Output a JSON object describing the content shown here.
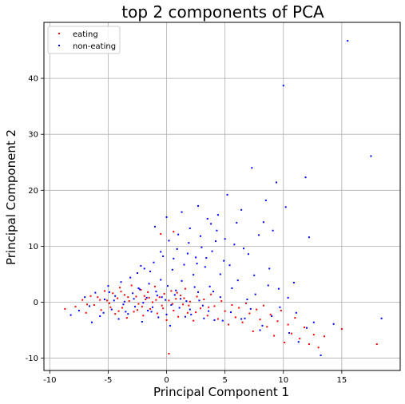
{
  "chart_data": {
    "type": "scatter",
    "title": "top 2 components of PCA",
    "xlabel": "Principal Component 1",
    "ylabel": "Principal Component 2",
    "xlim": [
      -10.5,
      20
    ],
    "ylim": [
      -12.2,
      50
    ],
    "xticks": [
      -10,
      -5,
      0,
      5,
      10,
      15
    ],
    "yticks": [
      -10,
      0,
      10,
      20,
      30,
      40
    ],
    "grid": true,
    "legend_position": "top-left",
    "series": [
      {
        "name": "eating",
        "color": "#ff0000",
        "points": [
          [
            -8.7,
            -1.2
          ],
          [
            -7.8,
            -0.8
          ],
          [
            -7.2,
            0.4
          ],
          [
            -6.9,
            -1.9
          ],
          [
            -6.5,
            1.1
          ],
          [
            -6.2,
            -0.5
          ],
          [
            -5.9,
            0.9
          ],
          [
            -5.6,
            -1.4
          ],
          [
            -5.3,
            2.0
          ],
          [
            -5.1,
            0.3
          ],
          [
            -4.8,
            -0.9
          ],
          [
            -4.6,
            1.6
          ],
          [
            -4.4,
            -2.1
          ],
          [
            -4.2,
            0.7
          ],
          [
            -4.0,
            2.6
          ],
          [
            -3.8,
            -1.0
          ],
          [
            -3.6,
            1.3
          ],
          [
            -3.4,
            -2.8
          ],
          [
            -3.2,
            0.2
          ],
          [
            -3.0,
            3.0
          ],
          [
            -2.8,
            -1.7
          ],
          [
            -2.6,
            1.0
          ],
          [
            -2.4,
            -0.3
          ],
          [
            -2.2,
            2.2
          ],
          [
            -2.0,
            -2.4
          ],
          [
            -1.8,
            0.5
          ],
          [
            -1.6,
            1.8
          ],
          [
            -1.4,
            -1.2
          ],
          [
            -1.2,
            0.0
          ],
          [
            -1.0,
            2.8
          ],
          [
            -0.8,
            -2.0
          ],
          [
            -0.6,
            0.9
          ],
          [
            -0.4,
            -0.6
          ],
          [
            -0.2,
            1.5
          ],
          [
            0.0,
            -3.2
          ],
          [
            0.2,
            0.3
          ],
          [
            0.4,
            2.0
          ],
          [
            0.6,
            -1.5
          ],
          [
            0.8,
            0.6
          ],
          [
            1.0,
            -2.6
          ],
          [
            1.2,
            1.2
          ],
          [
            1.4,
            -0.4
          ],
          [
            1.6,
            2.4
          ],
          [
            1.8,
            -1.9
          ],
          [
            2.0,
            0.1
          ],
          [
            2.3,
            -3.3
          ],
          [
            2.6,
            1.0
          ],
          [
            2.9,
            -1.1
          ],
          [
            3.2,
            0.5
          ],
          [
            3.5,
            -2.4
          ],
          [
            3.8,
            1.4
          ],
          [
            4.1,
            -0.7
          ],
          [
            4.4,
            -3.0
          ],
          [
            4.7,
            0.2
          ],
          [
            5.0,
            -1.6
          ],
          [
            5.3,
            -4.0
          ],
          [
            5.6,
            -0.5
          ],
          [
            5.9,
            -2.7
          ],
          [
            6.2,
            -1.0
          ],
          [
            6.5,
            -3.6
          ],
          [
            6.8,
            -0.2
          ],
          [
            7.1,
            -2.0
          ],
          [
            7.4,
            -5.2
          ],
          [
            7.7,
            -1.3
          ],
          [
            8.0,
            -3.1
          ],
          [
            8.3,
            -0.6
          ],
          [
            8.6,
            -4.4
          ],
          [
            8.9,
            -2.2
          ],
          [
            9.2,
            -6.0
          ],
          [
            9.5,
            -3.4
          ],
          [
            9.8,
            -1.5
          ],
          [
            10.1,
            -7.2
          ],
          [
            10.4,
            -4.0
          ],
          [
            10.7,
            -5.6
          ],
          [
            11.0,
            -2.8
          ],
          [
            11.4,
            -6.5
          ],
          [
            11.8,
            -4.5
          ],
          [
            12.2,
            -7.5
          ],
          [
            12.6,
            -5.8
          ],
          [
            13.0,
            -8.1
          ],
          [
            13.5,
            -6.1
          ],
          [
            15.0,
            -4.8
          ],
          [
            18.0,
            -7.5
          ],
          [
            0.2,
            -9.2
          ],
          [
            -0.5,
            12.2
          ],
          [
            0.6,
            12.6
          ],
          [
            -3.9,
            1.9
          ],
          [
            -2.5,
            -1.4
          ],
          [
            -1.5,
            0.8
          ],
          [
            -0.3,
            -1.1
          ],
          [
            0.9,
            1.7
          ],
          [
            1.9,
            -0.6
          ],
          [
            -4.9,
            -0.2
          ],
          [
            -3.3,
            0.9
          ],
          [
            -2.1,
            -0.8
          ],
          [
            -0.9,
            0.4
          ],
          [
            0.5,
            -0.3
          ],
          [
            1.5,
            0.7
          ],
          [
            2.5,
            -1.8
          ],
          [
            3.6,
            -0.9
          ],
          [
            -5.7,
            0.4
          ],
          [
            -6.8,
            -0.4
          ],
          [
            -4.1,
            -1.6
          ],
          [
            -1.9,
            1.1
          ]
        ]
      },
      {
        "name": "non-eating",
        "color": "#0000ff",
        "points": [
          [
            -8.2,
            -2.3
          ],
          [
            -7.5,
            -1.5
          ],
          [
            -7.0,
            0.9
          ],
          [
            -6.6,
            -0.7
          ],
          [
            -6.1,
            1.7
          ],
          [
            -5.7,
            -2.5
          ],
          [
            -5.3,
            0.5
          ],
          [
            -5.0,
            2.9
          ],
          [
            -4.7,
            -1.3
          ],
          [
            -4.4,
            1.1
          ],
          [
            -4.1,
            -3.0
          ],
          [
            -3.9,
            3.6
          ],
          [
            -3.6,
            0.1
          ],
          [
            -3.3,
            -2.1
          ],
          [
            -3.1,
            4.4
          ],
          [
            -2.9,
            1.6
          ],
          [
            -2.7,
            -0.8
          ],
          [
            -2.5,
            5.2
          ],
          [
            -2.3,
            2.3
          ],
          [
            -2.1,
            -3.5
          ],
          [
            -1.9,
            6.0
          ],
          [
            -1.7,
            0.8
          ],
          [
            -1.5,
            3.3
          ],
          [
            -1.3,
            -1.7
          ],
          [
            -1.1,
            7.1
          ],
          [
            -0.9,
            1.9
          ],
          [
            -0.7,
            -2.7
          ],
          [
            -0.5,
            4.0
          ],
          [
            -0.3,
            8.2
          ],
          [
            -0.1,
            0.4
          ],
          [
            0.1,
            2.9
          ],
          [
            0.3,
            -4.2
          ],
          [
            0.5,
            5.8
          ],
          [
            0.7,
            1.3
          ],
          [
            0.9,
            9.5
          ],
          [
            1.1,
            -1.0
          ],
          [
            1.3,
            3.8
          ],
          [
            1.5,
            6.7
          ],
          [
            1.7,
            0.2
          ],
          [
            1.9,
            10.6
          ],
          [
            2.1,
            -2.2
          ],
          [
            2.3,
            4.9
          ],
          [
            2.5,
            8.0
          ],
          [
            2.7,
            1.8
          ],
          [
            2.9,
            11.8
          ],
          [
            3.1,
            -0.6
          ],
          [
            3.3,
            6.3
          ],
          [
            3.5,
            14.9
          ],
          [
            3.7,
            2.8
          ],
          [
            3.9,
            9.1
          ],
          [
            4.1,
            -3.2
          ],
          [
            4.3,
            12.8
          ],
          [
            4.6,
            0.9
          ],
          [
            4.9,
            7.4
          ],
          [
            5.2,
            19.2
          ],
          [
            5.5,
            -1.8
          ],
          [
            5.8,
            10.3
          ],
          [
            6.1,
            3.9
          ],
          [
            6.4,
            16.5
          ],
          [
            6.7,
            -2.9
          ],
          [
            7.0,
            8.6
          ],
          [
            7.3,
            24.0
          ],
          [
            7.6,
            1.4
          ],
          [
            7.9,
            12.0
          ],
          [
            8.2,
            -4.2
          ],
          [
            8.5,
            18.2
          ],
          [
            8.8,
            6.0
          ],
          [
            9.1,
            12.8
          ],
          [
            9.4,
            21.4
          ],
          [
            9.7,
            -0.9
          ],
          [
            10.0,
            38.7
          ],
          [
            10.2,
            17.0
          ],
          [
            10.5,
            -5.5
          ],
          [
            10.9,
            3.5
          ],
          [
            11.3,
            -7.1
          ],
          [
            11.9,
            22.3
          ],
          [
            12.2,
            11.6
          ],
          [
            12.6,
            -3.6
          ],
          [
            13.2,
            -9.5
          ],
          [
            14.3,
            -3.9
          ],
          [
            15.5,
            46.7
          ],
          [
            17.5,
            26.1
          ],
          [
            18.4,
            -2.9
          ],
          [
            -6.4,
            -3.6
          ],
          [
            -5.4,
            -1.9
          ],
          [
            -4.5,
            0.3
          ],
          [
            -3.7,
            -0.4
          ],
          [
            -2.8,
            0.6
          ],
          [
            -2.0,
            -0.1
          ],
          [
            -1.2,
            -0.9
          ],
          [
            -0.4,
            0.9
          ],
          [
            0.4,
            -0.5
          ],
          [
            1.2,
            0.6
          ],
          [
            2.0,
            -1.3
          ],
          [
            2.8,
            0.3
          ],
          [
            3.6,
            -1.6
          ],
          [
            -4.9,
            1.8
          ],
          [
            -3.5,
            -1.7
          ],
          [
            -2.4,
            2.5
          ],
          [
            -1.6,
            -1.5
          ],
          [
            -0.8,
            1.2
          ],
          [
            0.0,
            -2.2
          ],
          [
            0.8,
            2.1
          ],
          [
            1.6,
            -2.6
          ],
          [
            2.4,
            2.7
          ],
          [
            3.2,
            -2.9
          ],
          [
            4.0,
            1.9
          ],
          [
            4.8,
            -3.3
          ],
          [
            5.6,
            2.5
          ],
          [
            6.4,
            -3.0
          ],
          [
            7.2,
            -1.2
          ],
          [
            8.0,
            -5.0
          ],
          [
            -1.0,
            13.5
          ],
          [
            0.0,
            15.2
          ],
          [
            1.3,
            16.1
          ],
          [
            2.7,
            17.2
          ],
          [
            3.8,
            14.0
          ],
          [
            4.4,
            15.6
          ],
          [
            6.0,
            14.2
          ],
          [
            8.3,
            14.3
          ],
          [
            -0.5,
            9.0
          ],
          [
            0.2,
            11.0
          ],
          [
            1.0,
            12.1
          ],
          [
            2.0,
            13.2
          ],
          [
            3.0,
            9.8
          ],
          [
            4.2,
            10.9
          ],
          [
            5.0,
            11.3
          ],
          [
            6.6,
            9.6
          ],
          [
            -2.2,
            6.5
          ],
          [
            -1.4,
            5.5
          ],
          [
            0.6,
            7.8
          ],
          [
            1.8,
            8.7
          ],
          [
            2.6,
            6.9
          ],
          [
            3.4,
            7.9
          ],
          [
            4.6,
            5.0
          ],
          [
            5.4,
            6.6
          ],
          [
            7.5,
            4.8
          ],
          [
            8.7,
            3.0
          ],
          [
            9.6,
            2.4
          ],
          [
            10.4,
            0.8
          ],
          [
            11.1,
            -1.9
          ],
          [
            12.0,
            -4.6
          ],
          [
            6.9,
            0.5
          ],
          [
            9.0,
            -2.5
          ]
        ]
      }
    ]
  }
}
